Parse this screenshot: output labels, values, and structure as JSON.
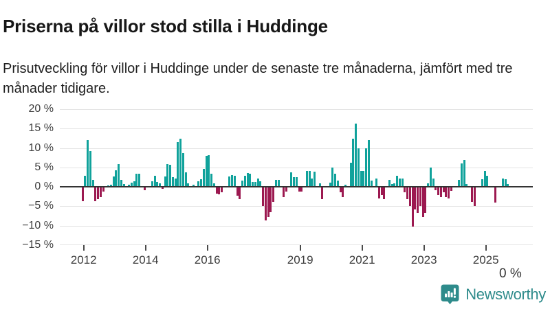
{
  "header": {
    "title": "Priserna på villor stod stilla i Huddinge",
    "subtitle": "Prisutveckling för villor i Huddinge under de senaste tre månaderna, jämfört med tre månader tidigare."
  },
  "annotation": {
    "latest_label": "0 %"
  },
  "logo": {
    "name": "Newsworthy",
    "icon": "bar-chart-speech-bubble"
  },
  "colors": {
    "positive_bar": "#10a29b",
    "negative_bar": "#9c1950",
    "zero_axis": "#333333",
    "gridline": "#e4e4e4",
    "tick_text": "#3d3d3d",
    "logo_teal": "#2e8b8b"
  },
  "chart_data": {
    "type": "bar",
    "unit": "%",
    "title": "Priserna på villor stod stilla i Huddinge",
    "xlabel": "",
    "ylabel": "",
    "ylim": [
      -15,
      20
    ],
    "grid": true,
    "start_month": "2011-12",
    "end_month": "2025-10",
    "frequency": "monthly",
    "y_ticks": [
      {
        "value": 20,
        "label": "20 %"
      },
      {
        "value": 15,
        "label": "15 %"
      },
      {
        "value": 10,
        "label": "10 %"
      },
      {
        "value": 5,
        "label": "5 %"
      },
      {
        "value": 0,
        "label": "0 %"
      },
      {
        "value": -5,
        "label": "−5 %"
      },
      {
        "value": -10,
        "label": "−10 %"
      },
      {
        "value": -15,
        "label": "−15 %"
      }
    ],
    "x_ticks": [
      {
        "year": 2012,
        "label": "2012"
      },
      {
        "year": 2014,
        "label": "2014"
      },
      {
        "year": 2016,
        "label": "2016"
      },
      {
        "year": 2019,
        "label": "2019"
      },
      {
        "year": 2021,
        "label": "2021"
      },
      {
        "year": 2023,
        "label": "2023"
      },
      {
        "year": 2025,
        "label": "2025"
      }
    ],
    "latest_value": 0,
    "values": [
      -3.5,
      2.8,
      12,
      9.2,
      1.8,
      -3.5,
      -3,
      -2.5,
      -1,
      0,
      0.3,
      0.5,
      2.7,
      4.3,
      5.8,
      1.8,
      0.8,
      0,
      0.5,
      1,
      1.5,
      3.4,
      3.3,
      0,
      -0.6,
      0,
      0,
      1.4,
      2.9,
      1.3,
      0.9,
      -0.4,
      2.7,
      5.8,
      5.6,
      2.5,
      2.2,
      11.5,
      12.4,
      8.6,
      3.7,
      0.9,
      0,
      0.5,
      0,
      1.5,
      2.0,
      4.7,
      7.9,
      8.2,
      3.4,
      0.9,
      -1.5,
      -1.8,
      -1.3,
      0,
      0,
      2.7,
      3.1,
      2.9,
      -2.1,
      -2.9,
      1.6,
      2.9,
      3.5,
      3.3,
      1.2,
      1.2,
      2.2,
      1.4,
      -4.7,
      -8.4,
      -7.6,
      -6.3,
      -3.6,
      1.8,
      1.8,
      0,
      -2.4,
      -1,
      0,
      3.7,
      2.5,
      2.5,
      -1,
      -1,
      0,
      4.1,
      4.1,
      2.2,
      3.9,
      0,
      0.9,
      -2.9,
      0,
      0,
      1,
      5,
      3.4,
      1.6,
      -1.3,
      -2.4,
      0.5,
      0,
      6.2,
      12.4,
      16.2,
      9.9,
      4.1,
      4.1,
      10,
      12.1,
      1.6,
      0,
      2.2,
      -2.8,
      -1.9,
      -2.9,
      0,
      1.8,
      0.8,
      0.9,
      2.8,
      2.2,
      2.2,
      -1.3,
      -2.9,
      -4.7,
      -10,
      -5.7,
      -6.6,
      -4.7,
      -7.5,
      -6.5,
      0.9,
      5,
      2.2,
      -0.6,
      -1.9,
      -2.4,
      -1.3,
      -2.4,
      -2.8,
      -0.8,
      0,
      0,
      1.8,
      6.1,
      6.9,
      0.8,
      0,
      -3.6,
      -4.8,
      0,
      0,
      1.9,
      4.1,
      2.8,
      0,
      0,
      -3.9,
      0,
      0,
      2.1,
      1.9,
      0.8,
      0
    ]
  }
}
